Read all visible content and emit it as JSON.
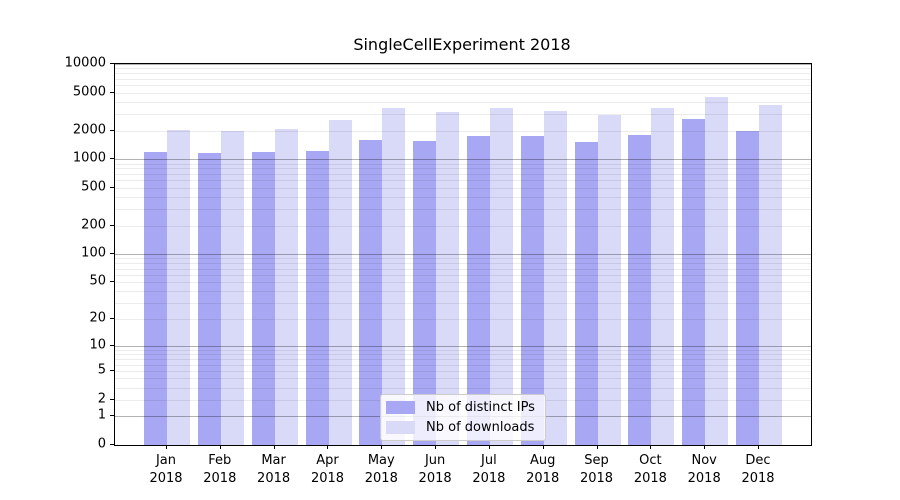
{
  "chart_data": {
    "type": "bar",
    "title": "SingleCellExperiment 2018",
    "categories": [
      "Jan 2018",
      "Feb 2018",
      "Mar 2018",
      "Apr 2018",
      "May 2018",
      "Jun 2018",
      "Jul 2018",
      "Aug 2018",
      "Sep 2018",
      "Oct 2018",
      "Nov 2018",
      "Dec 2018"
    ],
    "x_tick_months": [
      "Jan",
      "Feb",
      "Mar",
      "Apr",
      "May",
      "Jun",
      "Jul",
      "Aug",
      "Sep",
      "Oct",
      "Nov",
      "Dec"
    ],
    "x_tick_year": "2018",
    "series": [
      {
        "name": "Nb of distinct IPs",
        "color": "#a7a7f4",
        "values": [
          1190,
          1160,
          1180,
          1230,
          1600,
          1540,
          1740,
          1740,
          1520,
          1780,
          2640,
          1960
        ]
      },
      {
        "name": "Nb of downloads",
        "color": "#d9d9f8",
        "values": [
          2050,
          1960,
          2100,
          2570,
          3480,
          3100,
          3490,
          3250,
          2910,
          3430,
          4560,
          3730
        ]
      }
    ],
    "y_scale": "log10(1+v)",
    "y_ticks": [
      0,
      1,
      2,
      5,
      10,
      20,
      50,
      100,
      200,
      500,
      1000,
      2000,
      5000,
      10000
    ],
    "ylim": [
      0,
      10000
    ],
    "grid": "horizontal, major and minor, drawn over bars",
    "grid_major_color": "#b3b3b3",
    "grid_minor_color": "#ececec",
    "legend_position": "lower center"
  }
}
